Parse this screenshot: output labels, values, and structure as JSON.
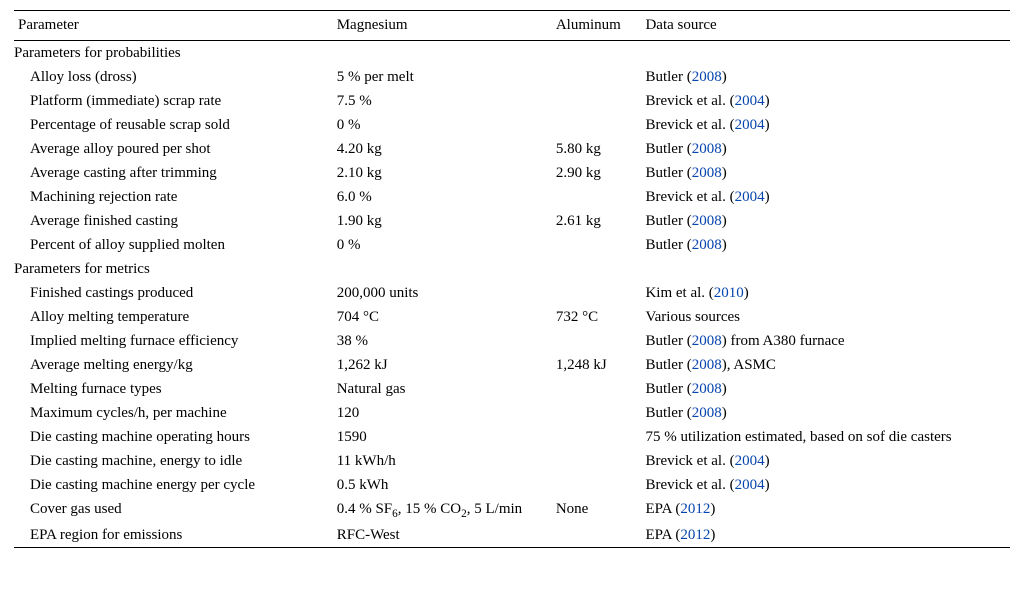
{
  "headers": {
    "parameter": "Parameter",
    "magnesium": "Magnesium",
    "aluminum": "Aluminum",
    "data_source": "Data source"
  },
  "sections": {
    "prob": "Parameters for probabilities",
    "metrics": "Parameters for metrics"
  },
  "rows": {
    "alloy_loss": {
      "p": "Alloy loss (dross)",
      "mg": "5 % per melt",
      "al": "",
      "src_pre": "Butler (",
      "yr": "2008",
      "src_post": ")"
    },
    "platform_scrap": {
      "p": "Platform (immediate) scrap rate",
      "mg": "7.5 %",
      "al": "",
      "src_pre": "Brevick et al. (",
      "yr": "2004",
      "src_post": ")"
    },
    "reusable_scrap": {
      "p": "Percentage of reusable scrap sold",
      "mg": "0 %",
      "al": "",
      "src_pre": "Brevick et al. (",
      "yr": "2004",
      "src_post": ")"
    },
    "alloy_poured": {
      "p": "Average alloy poured per shot",
      "mg": "4.20 kg",
      "al": "5.80 kg",
      "src_pre": "Butler (",
      "yr": "2008",
      "src_post": ")"
    },
    "cast_trim": {
      "p": "Average casting after trimming",
      "mg": "2.10 kg",
      "al": "2.90 kg",
      "src_pre": "Butler (",
      "yr": "2008",
      "src_post": ")"
    },
    "mach_reject": {
      "p": "Machining rejection rate",
      "mg": "6.0 %",
      "al": "",
      "src_pre": "Brevick et al. (",
      "yr": "2004",
      "src_post": ")"
    },
    "avg_finished": {
      "p": "Average finished casting",
      "mg": "1.90 kg",
      "al": "2.61 kg",
      "src_pre": "Butler (",
      "yr": "2008",
      "src_post": ")"
    },
    "pct_molten": {
      "p": "Percent of alloy supplied molten",
      "mg": "0 %",
      "al": "",
      "src_pre": "Butler (",
      "yr": "2008",
      "src_post": ")"
    },
    "fin_cast_prod": {
      "p": "Finished castings produced",
      "mg": "200,000 units",
      "al": "",
      "src_pre": "Kim et al. (",
      "yr": "2010",
      "src_post": ")"
    },
    "melt_temp": {
      "p": "Alloy melting temperature",
      "mg": "704 °C",
      "al": "732 °C",
      "src_pre": "Various sources",
      "yr": "",
      "src_post": ""
    },
    "furnace_eff": {
      "p": "Implied melting furnace efficiency",
      "mg": "38 %",
      "al": "",
      "src_pre": "Butler (",
      "yr": "2008",
      "src_post": ") from A380 furnace"
    },
    "melt_energy": {
      "p": "Average melting energy/kg",
      "mg": "1,262 kJ",
      "al": "1,248 kJ",
      "src_pre": "Butler (",
      "yr": "2008",
      "src_post": "), ASMC"
    },
    "furnace_types": {
      "p": "Melting furnace types",
      "mg": "Natural gas",
      "al": "",
      "src_pre": "Butler (",
      "yr": "2008",
      "src_post": ")"
    },
    "max_cycles": {
      "p": "Maximum cycles/h, per machine",
      "mg": "120",
      "al": "",
      "src_pre": "Butler (",
      "yr": "2008",
      "src_post": ")"
    },
    "op_hours": {
      "p": "Die casting machine operating hours",
      "mg": "1590",
      "al": "",
      "src_pre": "75 % utilization estimated, based on sof die casters",
      "yr": "",
      "src_post": ""
    },
    "energy_idle": {
      "p": "Die casting machine, energy to idle",
      "mg": "11 kWh/h",
      "al": "",
      "src_pre": "Brevick et al. (",
      "yr": "2004",
      "src_post": ")"
    },
    "energy_cycle": {
      "p": "Die casting machine energy per cycle",
      "mg": "0.5 kWh",
      "al": "",
      "src_pre": "Brevick et al. (",
      "yr": "2004",
      "src_post": ")"
    },
    "cover_gas": {
      "p": "Cover gas used",
      "al": "None",
      "src_pre": "EPA (",
      "yr": "2012",
      "src_post": ")"
    },
    "epa_region": {
      "p": "EPA region for emissions",
      "mg": "RFC-West",
      "al": "",
      "src_pre": "EPA (",
      "yr": "2012",
      "src_post": ")"
    }
  },
  "cover_gas_fragments": {
    "a": "0.4 % SF",
    "b": "6",
    "c": ", 15 % CO",
    "d": "2",
    "e": ", 5 L/min"
  }
}
